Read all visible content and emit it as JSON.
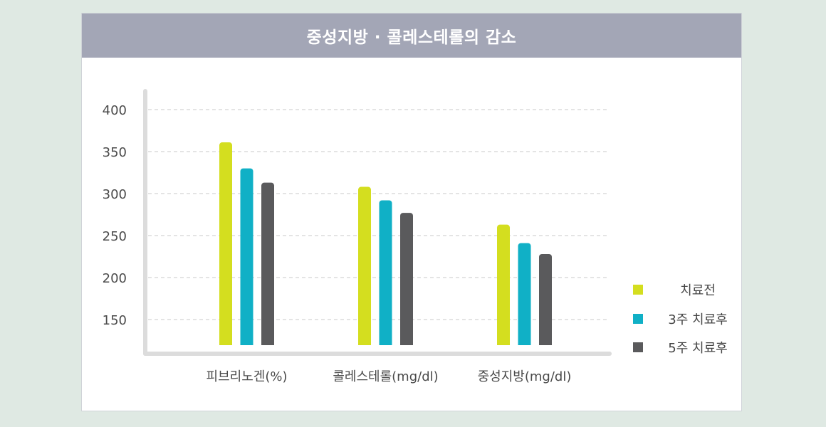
{
  "chart_data": {
    "type": "bar",
    "title": "중성지방 · 콜레스테롤의 감소",
    "categories": [
      "피브리노겐(%)",
      "콜레스테롤(mg/dl)",
      "중성지방(mg/dl)"
    ],
    "series": [
      {
        "name": "치료전",
        "color": "#d4de1f",
        "values": [
          361,
          308,
          263
        ]
      },
      {
        "name": "3주 치료후",
        "color": "#10b0c6",
        "values": [
          330,
          292,
          241
        ]
      },
      {
        "name": "5주 치료후",
        "color": "#5a5a5c",
        "values": [
          313,
          277,
          228
        ]
      }
    ],
    "yticks": [
      150,
      200,
      250,
      300,
      350,
      400
    ],
    "ylim": [
      120,
      420
    ],
    "grid": true,
    "legend_position": "right"
  }
}
